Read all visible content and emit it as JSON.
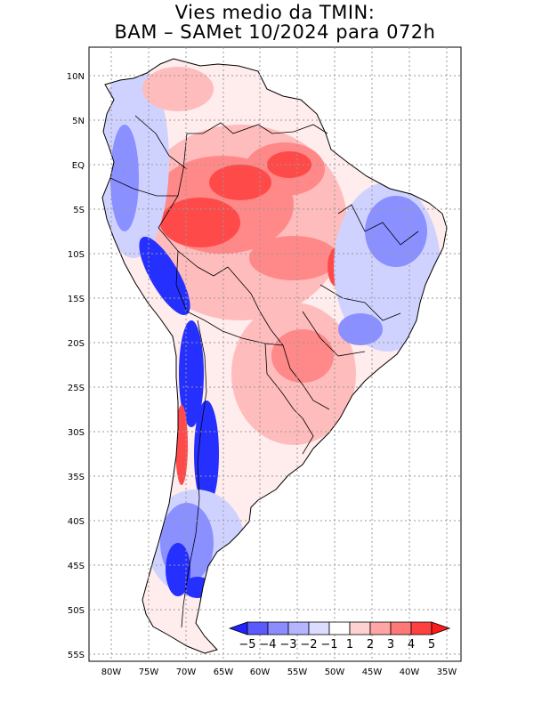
{
  "title": {
    "line1": "Vies medio da TMIN:",
    "line2": "BAM – SAMet 10/2024  para 072h"
  },
  "axes": {
    "lat_labels": [
      "10N",
      "5N",
      "EQ",
      "5S",
      "10S",
      "15S",
      "20S",
      "25S",
      "30S",
      "35S",
      "40S",
      "45S",
      "50S",
      "55S"
    ],
    "lon_labels": [
      "80W",
      "75W",
      "70W",
      "65W",
      "60W",
      "55W",
      "50W",
      "45W",
      "40W",
      "35W"
    ]
  },
  "colorbar": {
    "labels": [
      "−5",
      "−4",
      "−3",
      "−2",
      "−1",
      "1",
      "2",
      "3",
      "4",
      "5"
    ],
    "colors": [
      "#2323ff",
      "#5a5aff",
      "#8c8cff",
      "#b4b4ff",
      "#dcdcff",
      "#ffffff",
      "#ffd2d2",
      "#ffa5a5",
      "#ff7878",
      "#ff4040",
      "#ff1a1a"
    ]
  },
  "map_colors": {
    "land_base": "#ffecec",
    "warm_light": "#ffbcbc",
    "warm": "#ff8888",
    "warm_strong": "#ff4a4a",
    "cool_light": "#cfd2ff",
    "cool": "#8a90ff",
    "cool_strong": "#2530ff",
    "border": "#000000",
    "grid": "#9a9a9a"
  }
}
